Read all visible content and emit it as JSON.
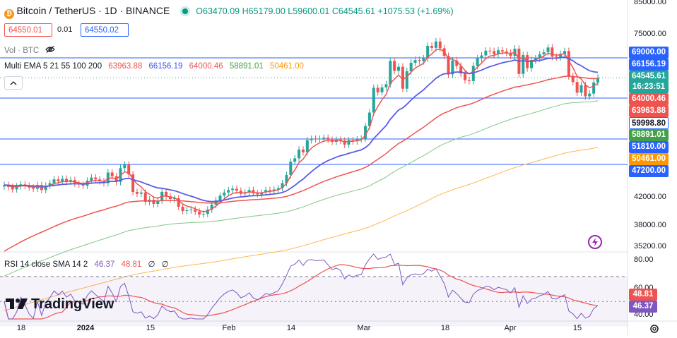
{
  "header": {
    "symbol": "Bitcoin / TetherUS · 1D · BINANCE",
    "open": "O63470.09",
    "high": "H65179.00",
    "low": "L59600.01",
    "close": "C64545.61",
    "change": "+1075.53 (+1.69%)",
    "sell_price": "64550.01",
    "spread": "0.01",
    "buy_price": "64550.02",
    "vol_label": "Vol · BTC",
    "ema_label": "Multi EMA 5 21 55 100 200",
    "ema_values": [
      "63963.88",
      "66156.19",
      "64000.46",
      "58891.01",
      "50461.00"
    ],
    "rsi_label": "RSI 14 close SMA 14 2",
    "rsi_values": [
      "46.37",
      "48.81",
      "∅",
      "∅"
    ],
    "brand": "TradingView"
  },
  "colors": {
    "up": "#26a69a",
    "down": "#ef5350",
    "ema5": "#ef5350",
    "ema21": "#5b5be6",
    "ema55": "#ef5350",
    "ema100": "#81c784",
    "ema200": "#ffb74d",
    "rsi": "#7e57c2",
    "rsi_sma": "#ef5350",
    "hline": "#2962ff"
  },
  "y_ticks": [
    "85000.00",
    "75000.00",
    "42000.00",
    "38000.00",
    "35200.00"
  ],
  "rsi_ticks": [
    "80.00",
    "60.00",
    "40.00"
  ],
  "x_ticks": [
    "18",
    "2024",
    "15",
    "Feb",
    "14",
    "Mar",
    "18",
    "Apr",
    "15"
  ],
  "tags": [
    {
      "text": "69000.00",
      "color": "#2962ff"
    },
    {
      "text": "66156.19",
      "color": "#2962ff"
    },
    {
      "text": "64545.61",
      "color": "#26a69a"
    },
    {
      "text": "16:23:51",
      "color": "#26a69a"
    },
    {
      "text": "64000.46",
      "color": "#ef5350"
    },
    {
      "text": "63963.88",
      "color": "#ef5350"
    },
    {
      "text": "59998.80",
      "color": "#2962ff"
    },
    {
      "text": "58891.01",
      "color": "#43a047"
    },
    {
      "text": "51810.00",
      "color": "#2962ff"
    },
    {
      "text": "50461.00",
      "color": "#ff9800"
    },
    {
      "text": "47200.00",
      "color": "#2962ff"
    },
    {
      "text": "48.81",
      "color": "#ef5350"
    },
    {
      "text": "46.37",
      "color": "#7e57c2"
    }
  ],
  "chart_data": {
    "type": "candlestick",
    "title": "Bitcoin / TetherUS · 1D · BINANCE",
    "ylim": [
      35200,
      85000
    ],
    "horizontal_levels": [
      69000,
      59998.8,
      51810,
      47200
    ],
    "closes": [
      43900,
      43600,
      43200,
      43700,
      44000,
      43800,
      43500,
      43300,
      43900,
      43100,
      43800,
      44200,
      44800,
      44500,
      44900,
      44400,
      44700,
      44100,
      44000,
      43800,
      44600,
      45100,
      44800,
      44500,
      44200,
      45900,
      45300,
      44400,
      46600,
      47200,
      45600,
      42800,
      42500,
      42700,
      41300,
      41600,
      41000,
      41500,
      42800,
      42100,
      41700,
      41800,
      40600,
      40000,
      40100,
      40200,
      39900,
      39500,
      39600,
      40200,
      40900,
      41500,
      42200,
      42700,
      43100,
      43300,
      43000,
      42500,
      42700,
      43100,
      42600,
      42400,
      42700,
      43100,
      43000,
      43200,
      43400,
      44200,
      45500,
      47700,
      48300,
      49900,
      49400,
      51600,
      51900,
      51800,
      51900,
      52100,
      51700,
      51300,
      51700,
      51500,
      50800,
      51600,
      51400,
      51800,
      51900,
      54400,
      57100,
      62300,
      61300,
      62400,
      63100,
      68300,
      66100,
      67000,
      62100,
      66000,
      67900,
      68500,
      68300,
      68900,
      72000,
      71500,
      73100,
      71400,
      69500,
      65300,
      68400,
      67200,
      65500,
      64000,
      63800,
      67200,
      68900,
      69600,
      70800,
      70700,
      69900,
      70900,
      70600,
      70300,
      69500,
      71300,
      65400,
      69700,
      66700,
      68500,
      68900,
      69900,
      70400,
      71600,
      69300,
      69200,
      70000,
      70700,
      64900,
      63600,
      61200,
      62900,
      60400,
      61000,
      63500,
      64545
    ],
    "series": [
      {
        "name": "EMA 5",
        "last": 63963.88
      },
      {
        "name": "EMA 21",
        "last": 66156.19
      },
      {
        "name": "EMA 55",
        "last": 64000.46
      },
      {
        "name": "EMA 100",
        "last": 58891.01
      },
      {
        "name": "EMA 200",
        "last": 50461.0
      }
    ],
    "rsi": {
      "ylim": [
        36,
        88
      ],
      "last": 46.37,
      "sma_last": 48.81
    }
  }
}
